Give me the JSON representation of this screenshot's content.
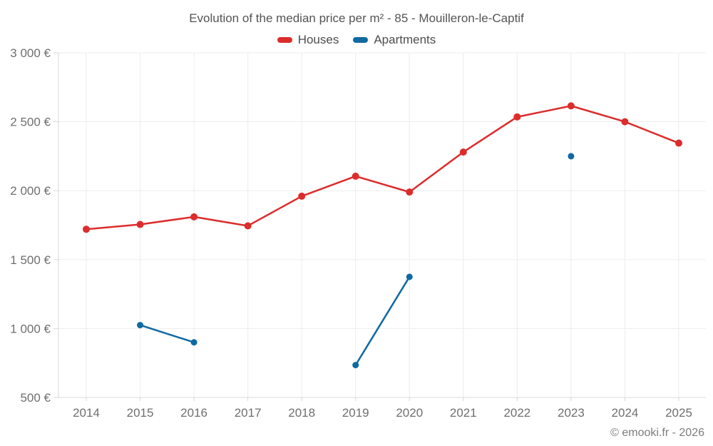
{
  "footer": {
    "credit": "© emooki.fr - 2026"
  },
  "chart_data": {
    "type": "line",
    "title": "Evolution of the median price per m² - 85 - Mouilleron-le-Captif",
    "categories": [
      "2014",
      "2015",
      "2016",
      "2017",
      "2018",
      "2019",
      "2020",
      "2021",
      "2022",
      "2023",
      "2024",
      "2025"
    ],
    "series": [
      {
        "name": "Houses",
        "color": "#dc2c2c",
        "marker_radius": 5,
        "values": [
          1720,
          1755,
          1810,
          1745,
          1960,
          2105,
          1990,
          2280,
          2535,
          2615,
          2500,
          2345
        ]
      },
      {
        "name": "Apartments",
        "color": "#0f6aa2",
        "marker_radius": 4.5,
        "values": [
          null,
          1025,
          900,
          null,
          null,
          735,
          1375,
          null,
          null,
          2250,
          null,
          null
        ]
      }
    ],
    "ylim": [
      500,
      3000
    ],
    "y_ticks": [
      {
        "value": 500,
        "label": "500 €"
      },
      {
        "value": 1000,
        "label": "1 000 €"
      },
      {
        "value": 1500,
        "label": "1 500 €"
      },
      {
        "value": 2000,
        "label": "2 000 €"
      },
      {
        "value": 2500,
        "label": "2 500 €"
      },
      {
        "value": 3000,
        "label": "3 000 €"
      }
    ],
    "grid": true,
    "legend_position": "top",
    "colors": {
      "gridline": "#ededed",
      "axis": "#d8d8d8",
      "tick_label": "#6f6f6f"
    }
  }
}
